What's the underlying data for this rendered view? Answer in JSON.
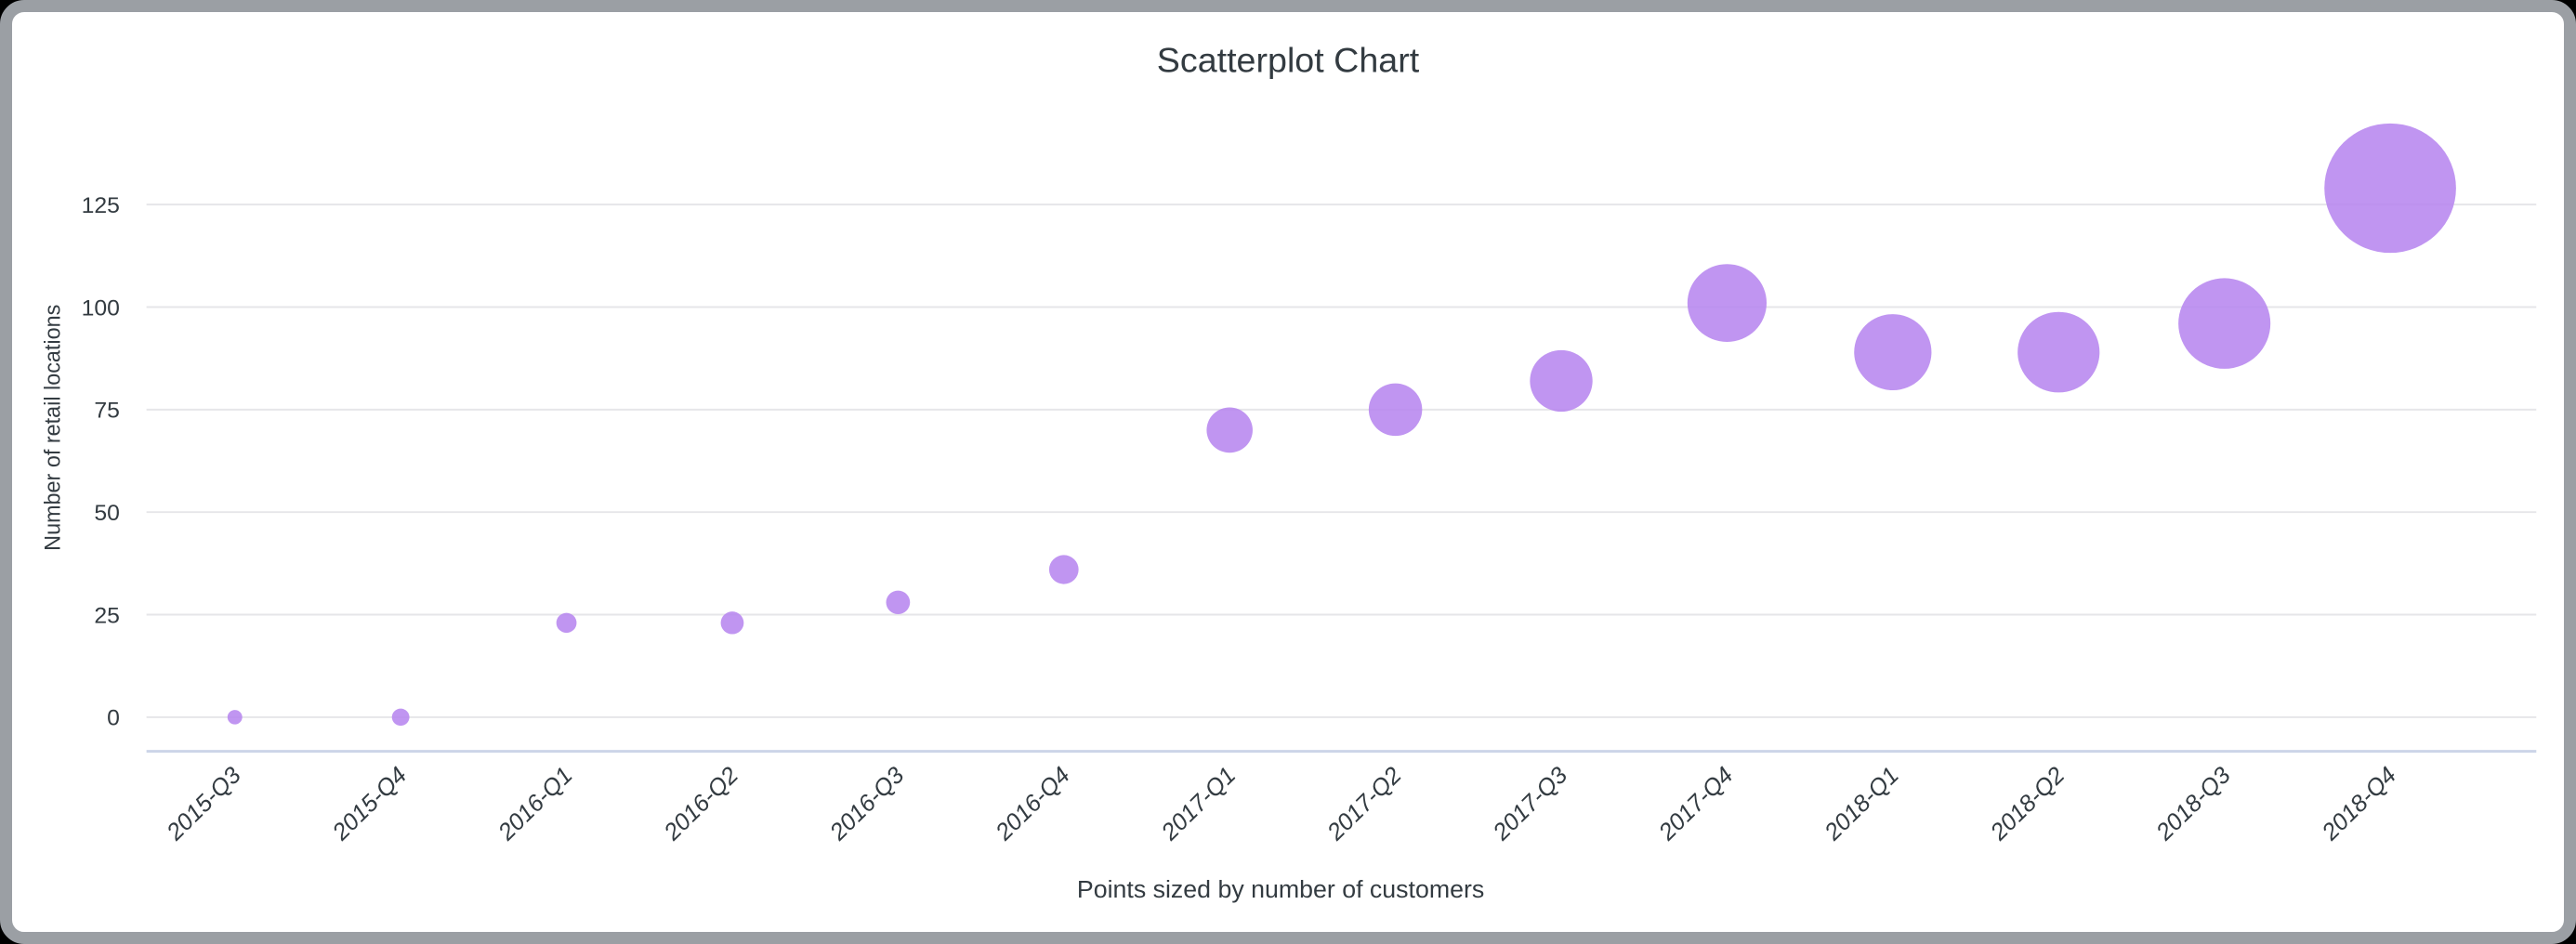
{
  "window": {
    "background": "#000000",
    "card_background": "#ffffff",
    "card_border_color": "#9b9fa4"
  },
  "chart_data": {
    "type": "scatter",
    "title": "Scatterplot Chart",
    "xlabel": "Points sized by number of customers",
    "ylabel": "Number of retail locations",
    "categories": [
      "2015-Q3",
      "2015-Q4",
      "2016-Q1",
      "2016-Q2",
      "2016-Q3",
      "2016-Q4",
      "2017-Q1",
      "2017-Q2",
      "2017-Q3",
      "2017-Q4",
      "2018-Q1",
      "2018-Q2",
      "2018-Q3",
      "2018-Q4"
    ],
    "series": [
      {
        "name": "Number of retail locations",
        "values": [
          0,
          0,
          23,
          23,
          28,
          36,
          70,
          75,
          82,
          101,
          89,
          89,
          96,
          129
        ],
        "point_radius_px": [
          8,
          9.5,
          11,
          12.5,
          13,
          16,
          25,
          29,
          34,
          43,
          42,
          44.5,
          50,
          71.5
        ]
      }
    ],
    "size_legend_note": "Points sized by number of customers",
    "y_ticks": [
      0,
      25,
      50,
      75,
      100,
      125
    ],
    "y_tick_labels": [
      "0",
      "25",
      "50",
      "75",
      "100",
      "125"
    ],
    "ylim": [
      0,
      140
    ],
    "grid": true,
    "legend_position": "none",
    "x_tick_style": "italic, rotated 45deg",
    "colors": {
      "point_fill": "#b583ef",
      "point_opacity": "0.85",
      "gridline": "#e6e6e9",
      "axis_line": "#ccd5e8",
      "text": "#333b41"
    }
  }
}
